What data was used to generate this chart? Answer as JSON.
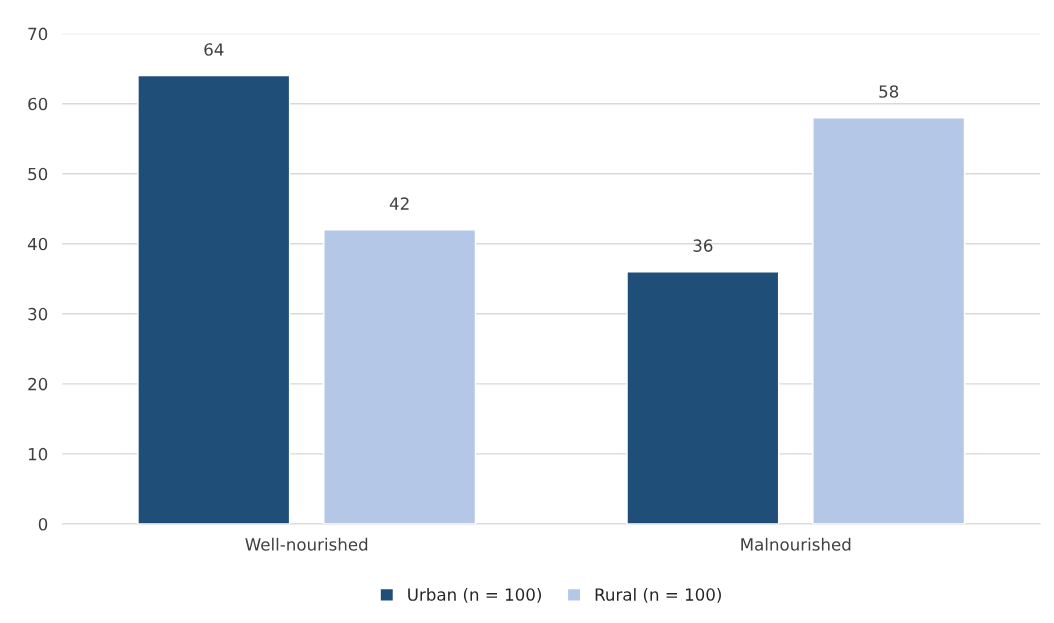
{
  "chart_data": {
    "type": "bar",
    "categories": [
      "Well-nourished",
      "Malnourished"
    ],
    "series": [
      {
        "name": "Urban (n = 100)",
        "color": "#1f4e79",
        "values": [
          64,
          36
        ]
      },
      {
        "name": "Rural (n = 100)",
        "color": "#b4c7e7",
        "values": [
          42,
          58
        ]
      }
    ],
    "ylim": [
      0,
      70
    ],
    "yticks": [
      0,
      10,
      20,
      30,
      40,
      50,
      60,
      70
    ],
    "grid": "y",
    "legend": "bottom",
    "data_labels": true
  }
}
